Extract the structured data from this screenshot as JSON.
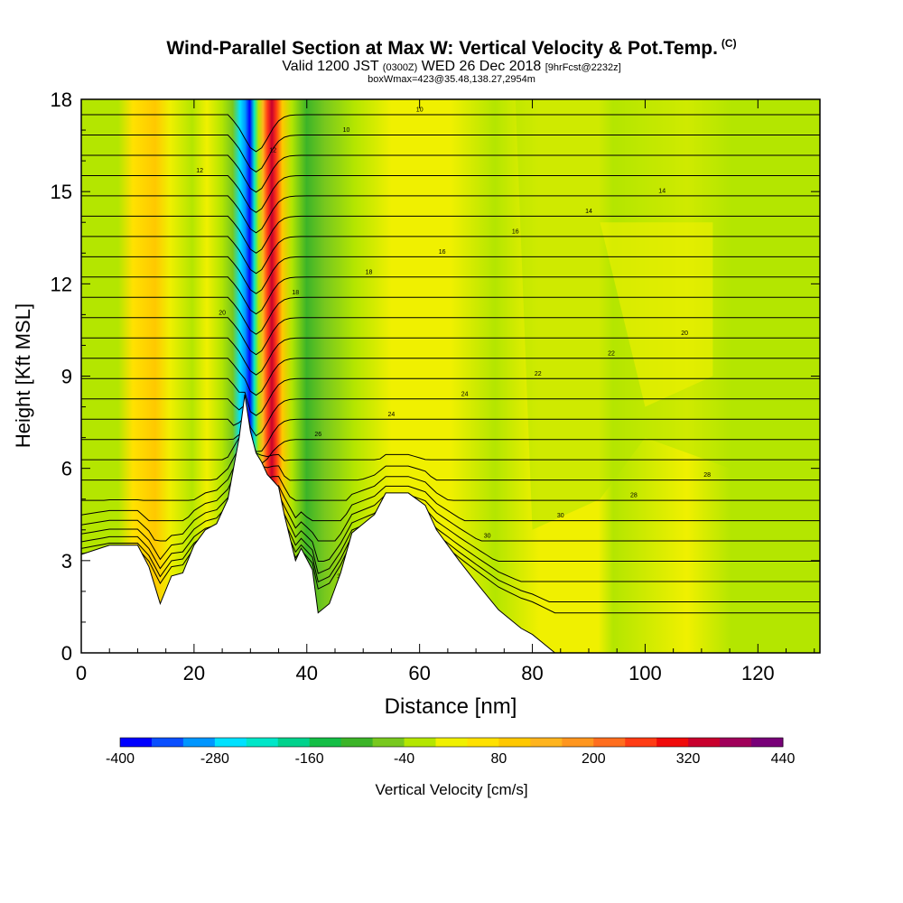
{
  "header": {
    "title": "Wind-Parallel Section at Max W: Vertical Velocity & Pot.Temp.",
    "title_suffix": "(C)",
    "valid_prefix": "Valid 1200 JST",
    "valid_utc": "(0300Z)",
    "valid_date": "WED 26 Dec 2018",
    "forecast": "[9hrFcst@2232z]",
    "box_info": "boxWmax=423@35.48,138.27,2954m"
  },
  "chart_data": {
    "type": "heatmap",
    "xlabel": "Distance [nm]",
    "ylabel": "Height [Kft MSL]",
    "xlim": [
      0,
      131
    ],
    "ylim": [
      0,
      18
    ],
    "x_ticks": [
      0,
      20,
      40,
      60,
      80,
      100,
      120
    ],
    "y_ticks": [
      0,
      3,
      6,
      9,
      12,
      15,
      18
    ],
    "colorbar": {
      "label": "Vertical Velocity [cm/s]",
      "range": [
        -400,
        440
      ],
      "tick_labels": [
        "-400",
        "-280",
        "-160",
        "-40",
        "80",
        "200",
        "320",
        "440"
      ],
      "colors": [
        "#0000ff",
        "#0a4fff",
        "#0096ff",
        "#00e1ff",
        "#00e6c8",
        "#00d28c",
        "#14be46",
        "#3cb428",
        "#78c81e",
        "#b4e600",
        "#f0f000",
        "#ffe100",
        "#ffc800",
        "#ffb41e",
        "#ff961e",
        "#ff6e1e",
        "#ff3c14",
        "#f00a0a",
        "#c8002d",
        "#a0005a",
        "#780078"
      ]
    },
    "terrain_kft": [
      [
        0,
        3.2
      ],
      [
        5,
        3.5
      ],
      [
        10,
        3.5
      ],
      [
        12,
        2.8
      ],
      [
        13,
        2.2
      ],
      [
        14,
        1.6
      ],
      [
        16,
        2.5
      ],
      [
        18,
        2.6
      ],
      [
        20,
        3.5
      ],
      [
        22,
        4.0
      ],
      [
        24,
        4.2
      ],
      [
        26,
        5.0
      ],
      [
        28,
        7.0
      ],
      [
        29,
        8.4
      ],
      [
        30,
        7.2
      ],
      [
        31,
        6.5
      ],
      [
        32,
        6.2
      ],
      [
        33,
        5.8
      ],
      [
        35,
        5.4
      ],
      [
        36,
        4.5
      ],
      [
        38,
        3.0
      ],
      [
        39,
        3.4
      ],
      [
        41,
        2.7
      ],
      [
        42,
        1.3
      ],
      [
        44,
        1.6
      ],
      [
        46,
        2.6
      ],
      [
        48,
        3.9
      ],
      [
        50,
        4.2
      ],
      [
        52,
        4.5
      ],
      [
        54,
        5.2
      ],
      [
        58,
        5.2
      ],
      [
        61,
        4.8
      ],
      [
        63,
        4.0
      ],
      [
        65,
        3.5
      ],
      [
        67,
        3.0
      ],
      [
        70,
        2.3
      ],
      [
        74,
        1.4
      ],
      [
        78,
        0.8
      ],
      [
        80,
        0.6
      ],
      [
        82,
        0.3
      ],
      [
        84,
        0.0
      ]
    ],
    "potential_temperature_contour_labels": [
      "34",
      "34",
      "32",
      "32",
      "30",
      "30",
      "28",
      "28",
      "26",
      "26",
      "24",
      "24",
      "22",
      "22",
      "20",
      "20",
      "18",
      "18",
      "16",
      "16",
      "14",
      "14",
      "12",
      "12",
      "10",
      "10"
    ],
    "max_updraft_location": 34
  }
}
